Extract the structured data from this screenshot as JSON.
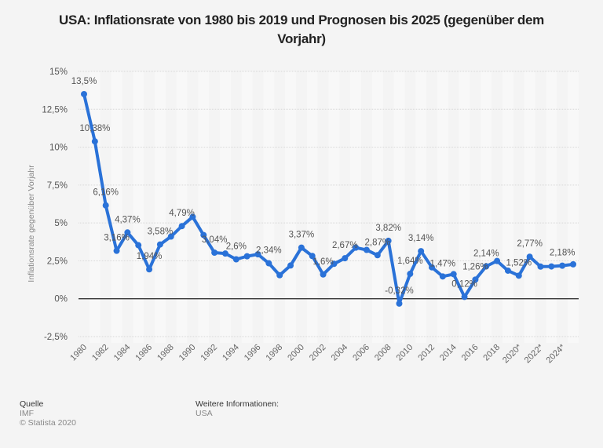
{
  "title": "USA: Inflationsrate von 1980 bis 2019 und Prognosen bis 2025 (gegenüber dem Vorjahr)",
  "footer": {
    "source_heading": "Quelle",
    "source": "IMF",
    "copyright": "© Statista 2020",
    "info_heading": "Weitere Informationen:",
    "info": "USA"
  },
  "chart_data": {
    "type": "line",
    "title": "USA: Inflationsrate von 1980 bis 2019 und Prognosen bis 2025 (gegenüber dem Vorjahr)",
    "xlabel": "",
    "ylabel": "Inflationsrate gegenüber Vorjahr",
    "ylim": [
      -2.5,
      15
    ],
    "yticks": [
      15,
      12.5,
      10,
      7.5,
      5,
      2.5,
      0,
      -2.5
    ],
    "ytick_labels": [
      "15%",
      "12,5%",
      "10%",
      "7,5%",
      "5%",
      "2,5%",
      "0%",
      "-2,5%"
    ],
    "xtick_labels": [
      "1980",
      "1982",
      "1984",
      "1986",
      "1988",
      "1990",
      "1992",
      "1994",
      "1996",
      "1998",
      "2000",
      "2002",
      "2004",
      "2006",
      "2008",
      "2010",
      "2012",
      "2014",
      "2016",
      "2018",
      "2020*",
      "2022*",
      "2024*"
    ],
    "grid": true,
    "series_color": "#2a72d8",
    "x": [
      1980,
      1981,
      1982,
      1983,
      1984,
      1985,
      1986,
      1987,
      1988,
      1989,
      1990,
      1991,
      1992,
      1993,
      1994,
      1995,
      1996,
      1997,
      1998,
      1999,
      2000,
      2001,
      2002,
      2003,
      2004,
      2005,
      2006,
      2007,
      2008,
      2009,
      2010,
      2011,
      2012,
      2013,
      2014,
      2015,
      2016,
      2017,
      2018,
      2019,
      2020,
      2021,
      2022,
      2023,
      2024,
      2025
    ],
    "series": [
      {
        "name": "Inflationsrate",
        "values": [
          13.5,
          10.38,
          6.16,
          3.16,
          4.37,
          3.53,
          1.94,
          3.58,
          4.1,
          4.79,
          5.4,
          4.2,
          3.04,
          2.98,
          2.6,
          2.8,
          2.93,
          2.34,
          1.55,
          2.19,
          3.37,
          2.82,
          1.6,
          2.3,
          2.67,
          3.37,
          3.22,
          2.87,
          3.82,
          -0.32,
          1.64,
          3.14,
          2.07,
          1.47,
          1.62,
          0.12,
          1.26,
          2.14,
          2.49,
          1.85,
          1.52,
          2.77,
          2.12,
          2.13,
          2.18,
          2.27
        ]
      }
    ],
    "data_labels": [
      {
        "x": 1980,
        "text": "13,5%"
      },
      {
        "x": 1981,
        "text": "10,38%"
      },
      {
        "x": 1982,
        "text": "6,16%"
      },
      {
        "x": 1983,
        "text": "3,16%"
      },
      {
        "x": 1984,
        "text": "4,37%"
      },
      {
        "x": 1986,
        "text": "1,94%"
      },
      {
        "x": 1987,
        "text": "3,58%"
      },
      {
        "x": 1989,
        "text": "4,79%"
      },
      {
        "x": 1992,
        "text": "3,04%"
      },
      {
        "x": 1994,
        "text": "2,6%"
      },
      {
        "x": 1997,
        "text": "2,34%"
      },
      {
        "x": 2000,
        "text": "3,37%"
      },
      {
        "x": 2002,
        "text": "1,6%"
      },
      {
        "x": 2004,
        "text": "2,67%"
      },
      {
        "x": 2007,
        "text": "2,87%"
      },
      {
        "x": 2008,
        "text": "3,82%"
      },
      {
        "x": 2009,
        "text": "-0,32%"
      },
      {
        "x": 2010,
        "text": "1,64%"
      },
      {
        "x": 2011,
        "text": "3,14%"
      },
      {
        "x": 2013,
        "text": "1,47%"
      },
      {
        "x": 2015,
        "text": "0,12%"
      },
      {
        "x": 2016,
        "text": "1,26%"
      },
      {
        "x": 2017,
        "text": "2,14%"
      },
      {
        "x": 2020,
        "text": "1,52%"
      },
      {
        "x": 2021,
        "text": "2,77%"
      },
      {
        "x": 2024,
        "text": "2,18%"
      }
    ]
  }
}
